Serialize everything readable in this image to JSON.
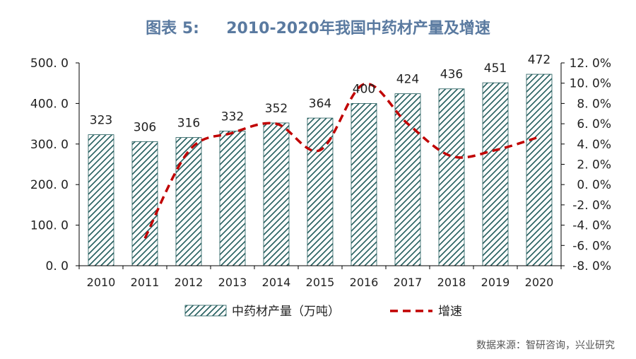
{
  "title": "图表 5:     2010-2020年我国中药材产量及增速",
  "source": "数据来源：智研咨询，兴业研究",
  "colors": {
    "bar_fill": "#1f5a5a",
    "line": "#c00000",
    "title": "#5a7aa0",
    "axis": "#000000"
  },
  "chart_data": {
    "type": "bar",
    "categories": [
      "2010",
      "2011",
      "2012",
      "2013",
      "2014",
      "2015",
      "2016",
      "2017",
      "2018",
      "2019",
      "2020"
    ],
    "series": [
      {
        "name": "中药材产量（万吨）",
        "type": "bar",
        "axis": "left",
        "pattern": "diagonal-hatch",
        "values": [
          323,
          306,
          316,
          332,
          352,
          364,
          400,
          424,
          436,
          451,
          472
        ]
      },
      {
        "name": "增速",
        "type": "line",
        "axis": "right",
        "style": "dashed",
        "values": [
          null,
          -5.3,
          3.3,
          5.1,
          6.0,
          3.4,
          9.9,
          6.0,
          2.8,
          3.4,
          4.7
        ]
      }
    ],
    "data_labels": [
      "323",
      "306",
      "316",
      "332",
      "352",
      "364",
      "400",
      "424",
      "436",
      "451",
      "472"
    ],
    "y_left": {
      "lim": [
        0,
        500
      ],
      "ticks": [
        0,
        100,
        200,
        300,
        400,
        500
      ],
      "tick_labels": [
        "0. 0",
        "100. 0",
        "200. 0",
        "300. 0",
        "400. 0",
        "500. 0"
      ]
    },
    "y_right": {
      "lim": [
        -8,
        12
      ],
      "ticks": [
        -8,
        -6,
        -4,
        -2,
        0,
        2,
        4,
        6,
        8,
        10,
        12
      ],
      "tick_labels": [
        "-8. 0%",
        "-6. 0%",
        "-4. 0%",
        "-2. 0%",
        "0. 0%",
        "2. 0%",
        "4. 0%",
        "6. 0%",
        "8. 0%",
        "10. 0%",
        "12. 0%"
      ]
    },
    "grid": false,
    "legend_position": "bottom"
  }
}
